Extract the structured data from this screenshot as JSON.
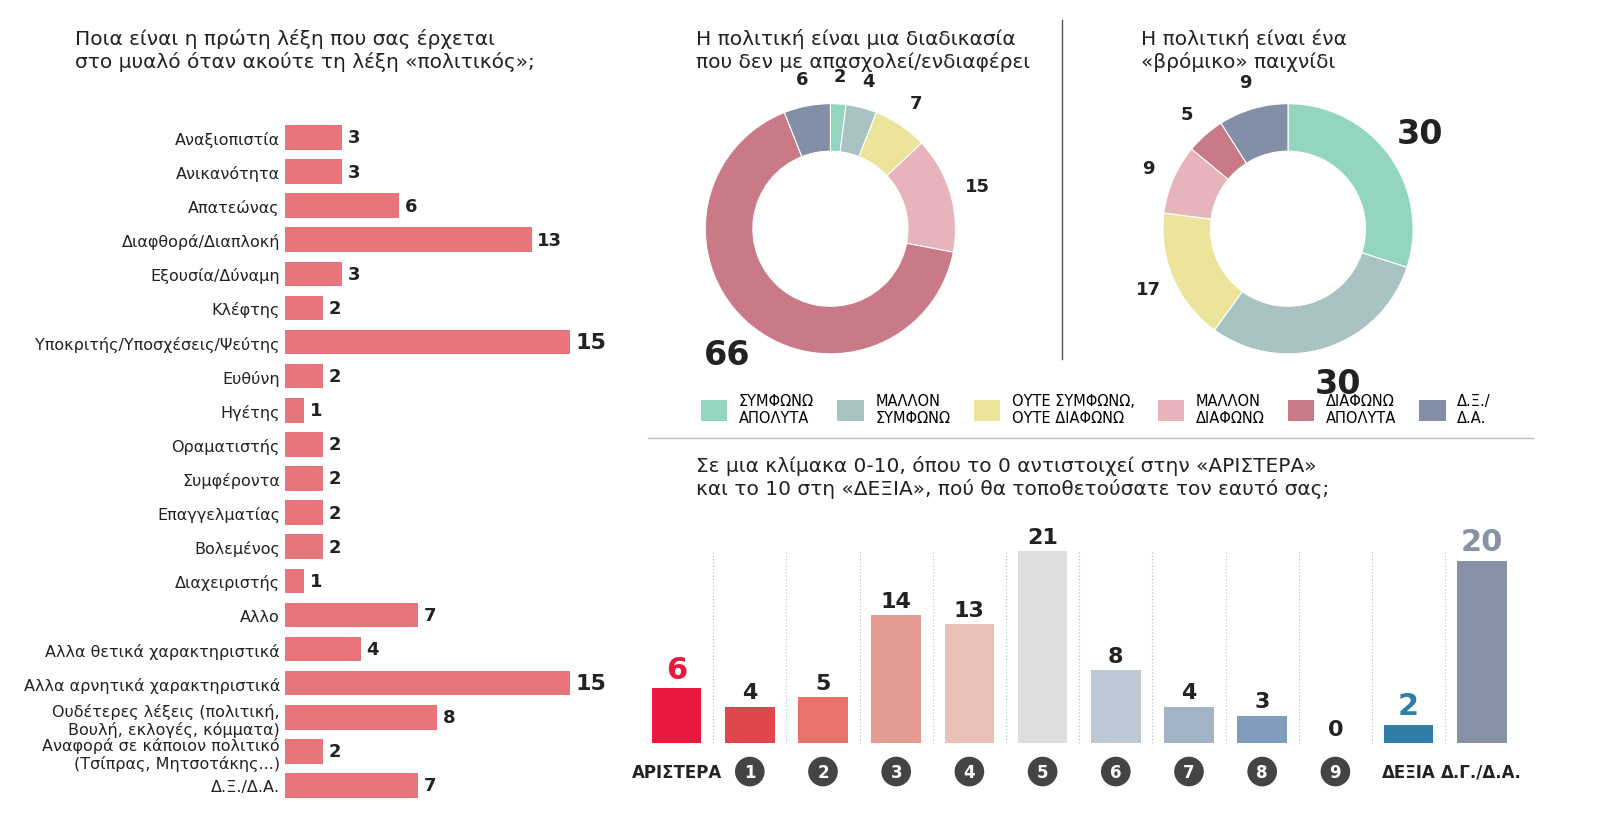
{
  "chart_data": [
    {
      "type": "bar",
      "orientation": "horizontal",
      "title": "Ποια είναι η πρώτη λέξη που σας έρχεται\nστο μυαλό όταν ακούτε τη λέξη «πολιτικός»;",
      "categories": [
        "Αναξιοπιστία",
        "Ανικανότητα",
        "Απατεώνας",
        "Διαφθορά/Διαπλοκή",
        "Εξουσία/Δύναμη",
        "Κλέφτης",
        "Υποκριτής/Υποσχέσεις/Ψεύτης",
        "Ευθύνη",
        "Ηγέτης",
        "Οραματιστής",
        "Συμφέροντα",
        "Επαγγελματίας",
        "Βολεμένος",
        "Διαχειριστής",
        "Αλλο",
        "Αλλα θετικά χαρακτηριστικά",
        "Αλλα αρνητικά χαρακτηριστικά",
        "Ουδέτερες λέξεις (πολιτική,\nΒουλή, εκλογές, κόμματα)",
        "Αναφορά σε κάποιον πολιτικό\n(Τσίπρας, Μητσοτάκης...)",
        "Δ.Ξ./Δ.Α."
      ],
      "values": [
        3,
        3,
        6,
        13,
        3,
        2,
        15,
        2,
        1,
        2,
        2,
        2,
        2,
        1,
        7,
        4,
        15,
        8,
        2,
        7
      ],
      "color": "#e8747c",
      "xlim": [
        0,
        15
      ],
      "data_labels": true,
      "tick_labels": "y"
    },
    {
      "type": "pie",
      "title": "Η πολιτική είναι μια διαδικασία\nπου δεν με απασχολεί/ενδιαφέρει",
      "categories": [
        "ΣΥΜΦΩΝΩ\nΑΠΟΛΥΤΑ",
        "ΜΑΛΛΟΝ\nΣΥΜΦΩΝΩ",
        "ΟΥΤΕ ΣΥΜΦΩΝΩ,\nΟΥΤΕ ΔΙΑΦΩΝΩ",
        "ΜΑΛΛΟΝ\nΔΙΑΦΩΝΩ",
        "ΔΙΑΦΩΝΩ\nΑΠΟΛΥΤΑ",
        "Δ.Ξ./\nΔ.Α."
      ],
      "values": [
        2,
        4,
        7,
        15,
        66,
        6
      ],
      "colors": [
        "#93d5bf",
        "#a9c3c3",
        "#ebe49a",
        "#e8b4bc",
        "#c97a86",
        "#838fa6"
      ],
      "data_labels": true,
      "legend": "upper center"
    },
    {
      "type": "pie",
      "title": "Η πολιτική είναι ένα\n«βρόμικο» παιχνίδι",
      "categories": [
        "ΣΥΜΦΩΝΩ\nΑΠΟΛΥΤΑ",
        "ΜΑΛΛΟΝ\nΣΥΜΦΩΝΩ",
        "ΟΥΤΕ ΣΥΜΦΩΝΩ,\nΟΥΤΕ ΔΙΑΦΩΝΩ",
        "ΜΑΛΛΟΝ\nΔΙΑΦΩΝΩ",
        "ΔΙΑΦΩΝΩ\nΑΠΟΛΥΤΑ",
        "Δ.Ξ./\nΔ.Α."
      ],
      "values": [
        30,
        30,
        17,
        9,
        5,
        9
      ],
      "colors": [
        "#93d5bf",
        "#a9c3c3",
        "#ebe49a",
        "#e8b4bc",
        "#c97a86",
        "#838fa6"
      ],
      "data_labels": true
    },
    {
      "type": "bar",
      "title": "Σε μια κλίμακα 0-10, όπου το 0 αντιστοιχεί στην «ΑΡΙΣΤΕΡΑ»\nκαι το 10 στη «ΔΕΞΙΑ», πού θα τοποθετούσατε τον εαυτό σας;",
      "categories": [
        "ΑΡΙΣΤΕΡΑ",
        "1",
        "2",
        "3",
        "4",
        "5",
        "6",
        "7",
        "8",
        "9",
        "ΔΕΞΙΑ",
        "Δ.Γ./Δ.Α."
      ],
      "values": [
        6,
        4,
        5,
        14,
        13,
        21,
        8,
        4,
        3,
        0,
        2,
        20
      ],
      "colors": [
        "#e8193c",
        "#e0474c",
        "#e8736a",
        "#e39a8f",
        "#e8c0b8",
        "#dddddd",
        "#bcc8d4",
        "#a4b4c8",
        "#7f9cbc",
        "#7f9cbc",
        "#2f7ea8",
        "#8792a6"
      ],
      "ylim": [
        0,
        21
      ],
      "data_labels": true,
      "tick_labels": "x"
    }
  ]
}
